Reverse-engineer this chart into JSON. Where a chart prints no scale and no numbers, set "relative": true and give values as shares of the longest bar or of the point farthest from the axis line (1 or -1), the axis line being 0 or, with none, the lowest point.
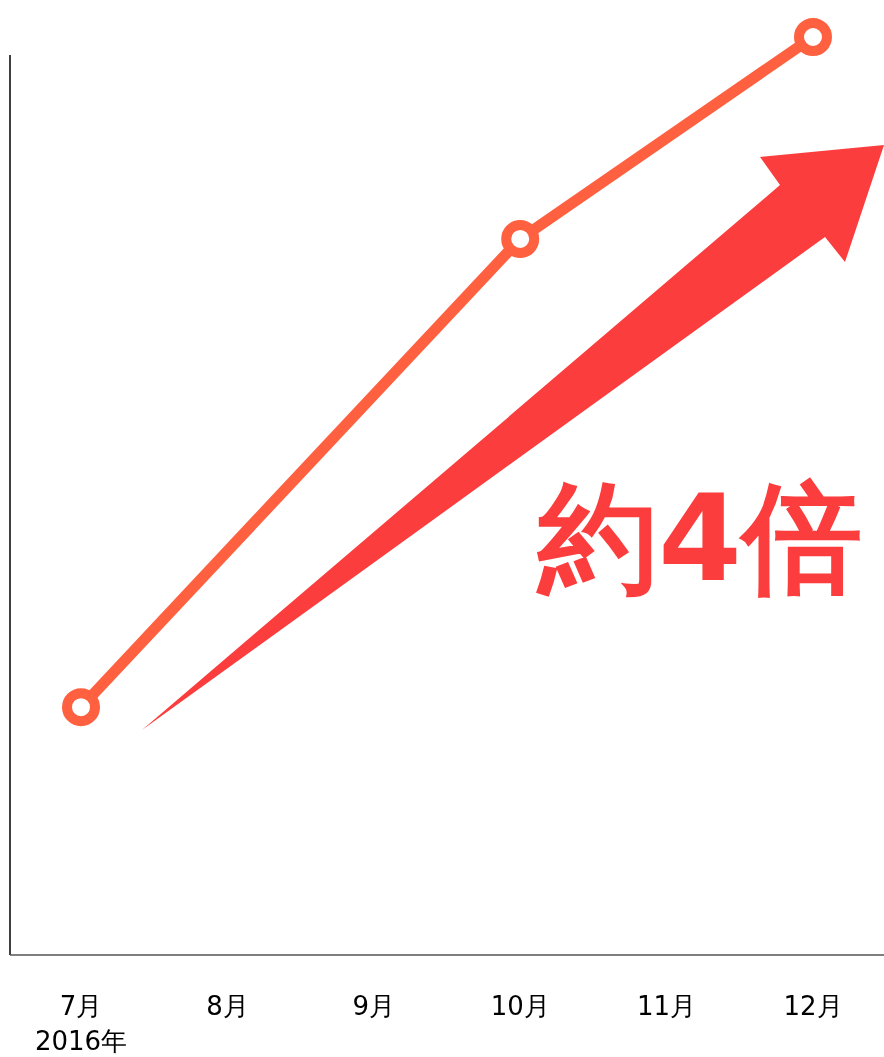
{
  "chart_data": {
    "type": "line",
    "relative": true,
    "categories": [
      "7月",
      "8月",
      "9月",
      "10月",
      "11月",
      "12月"
    ],
    "series": [
      {
        "color": "#ff6040",
        "values": [
          0.27,
          null,
          null,
          0.78,
          null,
          1
        ]
      }
    ],
    "marker": "circle",
    "line_style": "solid",
    "grid": false,
    "annotations": [
      "2016年",
      "約4倍"
    ]
  }
}
